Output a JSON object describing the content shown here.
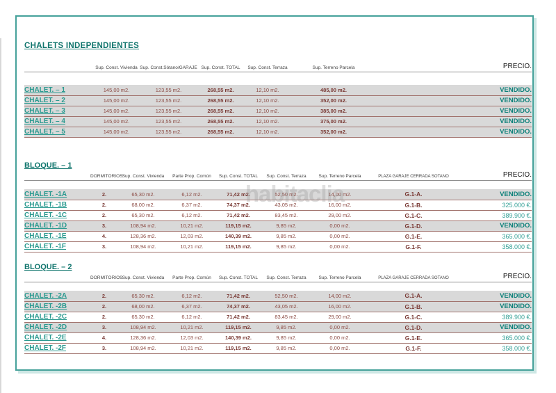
{
  "watermark": "habitaclia",
  "colors": {
    "frame_border": "#45a19a",
    "frame_shadow": "#cde7e4",
    "title_teal": "#10756d",
    "label_teal": "#2b9a90",
    "vendido_teal": "#0d817a",
    "price_teal": "#33a096",
    "value_maroon": "#8c4b44",
    "bold_maroon": "#7a3a35",
    "row_border_maroon": "#a1736d",
    "sold_row_bg": "#d9d9d9"
  },
  "independientes": {
    "title": "CHALETS INDEPENDIENTES",
    "headers": {
      "vivienda": "Sup. Const. Vivienda",
      "sotano": "Sup. Const.Sótano/GARAJE",
      "total": "Sup. Const. TOTAL",
      "terraza": "Sup. Const. Terraza",
      "parcela": "Sup. Terreno Parcela",
      "precio": "PRECIO."
    },
    "rows": [
      {
        "label": "CHALET. – 1",
        "vivienda": "145,00 m2.",
        "sotano": "123,55 m2.",
        "total": "268,55 m2.",
        "terraza": "12,10 m2.",
        "parcela": "485,00 m2.",
        "precio": "VENDIDO.",
        "sold": true
      },
      {
        "label": "CHALET. – 2",
        "vivienda": "145,00 m2.",
        "sotano": "123,55 m2.",
        "total": "268,55 m2.",
        "terraza": "12,10 m2.",
        "parcela": "352,00 m2.",
        "precio": "VENDIDO.",
        "sold": true
      },
      {
        "label": "CHALET. – 3",
        "vivienda": "145,00 m2.",
        "sotano": "123,55 m2.",
        "total": "268,55 m2.",
        "terraza": "12,10 m2.",
        "parcela": "385,00 m2.",
        "precio": "VENDIDO.",
        "sold": true
      },
      {
        "label": "CHALET. – 4",
        "vivienda": "145,00 m2.",
        "sotano": "123,55 m2.",
        "total": "268,55 m2.",
        "terraza": "12,10 m2.",
        "parcela": "375,00 m2.",
        "precio": "VENDIDO.",
        "sold": true
      },
      {
        "label": "CHALET. – 5",
        "vivienda": "145,00 m2.",
        "sotano": "123,55 m2.",
        "total": "268,55 m2.",
        "terraza": "12,10 m2.",
        "parcela": "352,00 m2.",
        "precio": "VENDIDO.",
        "sold": true
      }
    ]
  },
  "bloque1": {
    "title": "BLOQUE. – 1",
    "headers": {
      "dormitorios": "DORMITORIOS",
      "vivienda": "Sup. Const. Vivienda",
      "comun": "Parte Prop. Común",
      "total": "Sup. Const. TOTAL",
      "terraza": "Sup. Const. Terraza",
      "parcela": "Sup. Terreno Parcela",
      "garaje": "PLAZA GARAJE CERRADA SOTANO",
      "precio": "PRECIO."
    },
    "rows": [
      {
        "label": "CHALET. -1A",
        "dormitorios": "2.",
        "vivienda": "65,30 m2.",
        "comun": "6,12 m2.",
        "total": "71,42 m2.",
        "terraza": "52,50 m2.",
        "parcela": "14,00 m2.",
        "garaje": "G.1-A.",
        "precio": "VENDIDO.",
        "sold": true
      },
      {
        "label": "CHALET. -1B",
        "dormitorios": "2.",
        "vivienda": "68,00 m2.",
        "comun": "6,37 m2.",
        "total": "74,37 m2.",
        "terraza": "43,05 m2.",
        "parcela": "16,00 m2.",
        "garaje": "G.1-B.",
        "precio": "325.000 €.",
        "sold": false
      },
      {
        "label": "CHALET. -1C",
        "dormitorios": "2.",
        "vivienda": "65,30 m2.",
        "comun": "6,12 m2.",
        "total": "71,42 m2.",
        "terraza": "83,45 m2.",
        "parcela": "29,00 m2.",
        "garaje": "G.1-C.",
        "precio": "389.900 €.",
        "sold": false
      },
      {
        "label": "CHALET. -1D",
        "dormitorios": "3.",
        "vivienda": "108,94 m2.",
        "comun": "10,21 m2.",
        "total": "119,15 m2.",
        "terraza": "9,85 m2.",
        "parcela": "0,00 m2.",
        "garaje": "G.1-D.",
        "precio": "VENDIDO.",
        "sold": true
      },
      {
        "label": "CHALET. -1E",
        "dormitorios": "4.",
        "vivienda": "128,36 m2.",
        "comun": "12,03 m2.",
        "total": "140,39 m2.",
        "terraza": "9,85 m2.",
        "parcela": "0,00 m2.",
        "garaje": "G.1-E.",
        "precio": "365.000 €.",
        "sold": false
      },
      {
        "label": "CHALET. -1F",
        "dormitorios": "3.",
        "vivienda": "108,94 m2.",
        "comun": "10,21 m2.",
        "total": "119,15 m2.",
        "terraza": "9,85 m2.",
        "parcela": "0,00 m2.",
        "garaje": "G.1-F.",
        "precio": "358.000 €.",
        "sold": false
      }
    ]
  },
  "bloque2": {
    "title": "BLOQUE. – 2",
    "headers": {
      "dormitorios": "DORMITORIOS",
      "vivienda": "Sup. Const. Vivienda",
      "comun": "Parte Prop. Común",
      "total": "Sup. Const. TOTAL",
      "terraza": "Sup. Const. Terraza",
      "parcela": "Sup. Terreno Parcela",
      "garaje": "PLAZA GARAJE CERRADA SOTANO",
      "precio": "PRECIO."
    },
    "rows": [
      {
        "label": "CHALET. -2A",
        "dormitorios": "2.",
        "vivienda": "65,30 m2.",
        "comun": "6,12 m2.",
        "total": "71,42 m2.",
        "terraza": "52,50 m2.",
        "parcela": "14,00 m2.",
        "garaje": "G.1-A.",
        "precio": "VENDIDO.",
        "sold": true
      },
      {
        "label": "CHALET. -2B",
        "dormitorios": "2.",
        "vivienda": "68,00 m2.",
        "comun": "6,37 m2.",
        "total": "74,37 m2.",
        "terraza": "43,05 m2.",
        "parcela": "16,00 m2.",
        "garaje": "G.1-B.",
        "precio": "VENDIDO.",
        "sold": true
      },
      {
        "label": "CHALET. -2C",
        "dormitorios": "2.",
        "vivienda": "65,30 m2.",
        "comun": "6,12 m2.",
        "total": "71,42 m2.",
        "terraza": "83,45 m2.",
        "parcela": "29,00 m2.",
        "garaje": "G.1-C.",
        "precio": "389.900 €.",
        "sold": false
      },
      {
        "label": "CHALET. -2D",
        "dormitorios": "3.",
        "vivienda": "108,94 m2.",
        "comun": "10,21 m2.",
        "total": "119,15 m2.",
        "terraza": "9,85 m2.",
        "parcela": "0,00 m2.",
        "garaje": "G.1-D.",
        "precio": "VENDIDO.",
        "sold": true
      },
      {
        "label": "CHALET. -2E",
        "dormitorios": "4.",
        "vivienda": "128,36 m2.",
        "comun": "12,03 m2.",
        "total": "140,39 m2.",
        "terraza": "9,85 m2.",
        "parcela": "0,00 m2.",
        "garaje": "G.1-E.",
        "precio": "365.000 €.",
        "sold": false
      },
      {
        "label": "CHALET. -2F",
        "dormitorios": "3.",
        "vivienda": "108,94 m2.",
        "comun": "10,21 m2.",
        "total": "119,15 m2.",
        "terraza": "9,85 m2.",
        "parcela": "0,00 m2.",
        "garaje": "G.1-F.",
        "precio": "358.000 €.",
        "sold": false
      }
    ]
  }
}
